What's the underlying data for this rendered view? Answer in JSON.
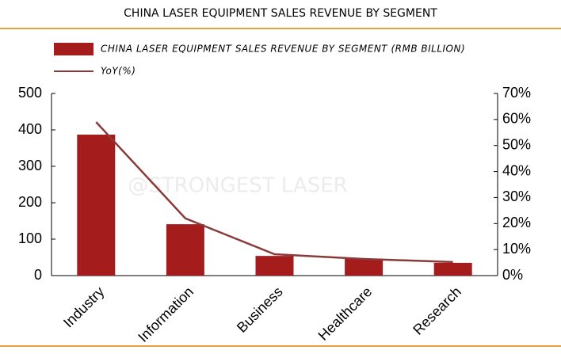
{
  "chart_data": {
    "type": "bar",
    "title": "CHINA LASER EQUIPMENT SALES REVENUE BY SEGMENT",
    "watermark": "@STRONGEST LASER",
    "categories": [
      "Industry",
      "Information",
      "Business",
      "Healthcare",
      "Research"
    ],
    "series": [
      {
        "name": "CHINA LASER EQUIPMENT SALES REVENUE BY SEGMENT (RMB BILLION)",
        "type": "bar",
        "color": "#a51c1c",
        "values": [
          387,
          141,
          54,
          46,
          35
        ]
      },
      {
        "name": "YoY(%)",
        "type": "line",
        "axis": "y2",
        "color": "#8b3a3a",
        "values": [
          59,
          22,
          8.2,
          6.4,
          5.2
        ]
      }
    ],
    "ylim": [
      0,
      500
    ],
    "yticks": [
      0,
      100,
      200,
      300,
      400,
      500
    ],
    "y2lim": [
      0,
      70
    ],
    "y2ticks": [
      {
        "value": 0,
        "label": "0%"
      },
      {
        "value": 10,
        "label": "10%"
      },
      {
        "value": 20,
        "label": "20%"
      },
      {
        "value": 30,
        "label": "30%"
      },
      {
        "value": 40,
        "label": "40%"
      },
      {
        "value": 50,
        "label": "50%"
      },
      {
        "value": 60,
        "label": "60%"
      },
      {
        "value": 70,
        "label": "70%"
      }
    ],
    "grid": false
  }
}
